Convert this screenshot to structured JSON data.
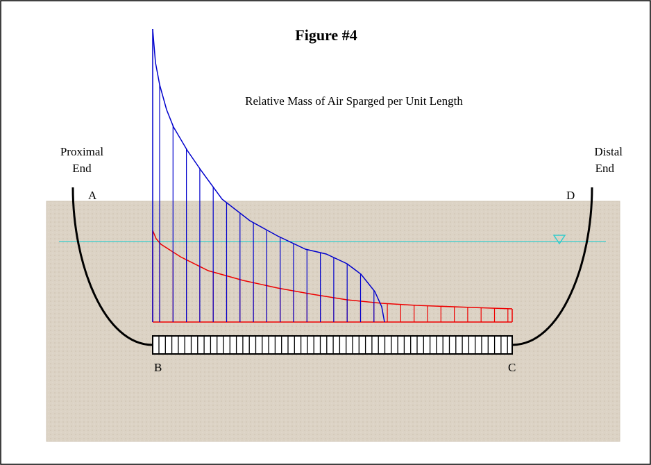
{
  "title": "Figure #4",
  "subtitle": "Relative Mass of Air Sparged per Unit Length",
  "labels": {
    "proximal": [
      "Proximal",
      "End"
    ],
    "distal": [
      "Distal",
      "End"
    ],
    "a": "A",
    "b": "B",
    "c": "C",
    "d": "D"
  }
}
